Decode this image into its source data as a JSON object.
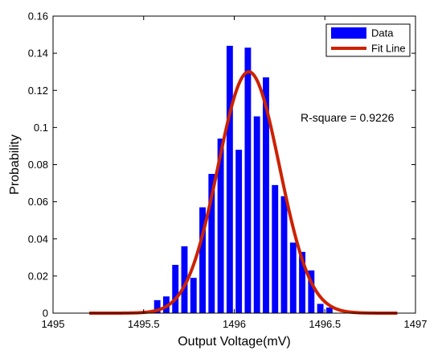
{
  "chart_data": {
    "type": "bar",
    "xlabel": "Output Voltage(mV)",
    "ylabel": "Probability",
    "xlim": [
      1495,
      1497
    ],
    "ylim": [
      0,
      0.16
    ],
    "xticks": [
      1495,
      1495.5,
      1496,
      1496.5,
      1497
    ],
    "yticks": [
      0,
      0.02,
      0.04,
      0.06,
      0.08,
      0.1,
      0.12,
      0.14,
      0.16
    ],
    "xtick_labels": [
      "1495",
      "1495.5",
      "1496",
      "1496.5",
      "1497"
    ],
    "ytick_labels": [
      "0",
      "0.02",
      "0.04",
      "0.06",
      "0.08",
      "0.1",
      "0.12",
      "0.14",
      "0.16"
    ],
    "bar_width": 0.035,
    "series": [
      {
        "name": "Data",
        "type": "bar",
        "color": "#0000ff",
        "x": [
          1495.575,
          1495.625,
          1495.675,
          1495.725,
          1495.775,
          1495.825,
          1495.875,
          1495.925,
          1495.975,
          1496.025,
          1496.075,
          1496.125,
          1496.175,
          1496.225,
          1496.275,
          1496.325,
          1496.375,
          1496.425,
          1496.475,
          1496.525
        ],
        "values": [
          0.007,
          0.009,
          0.026,
          0.036,
          0.019,
          0.057,
          0.075,
          0.094,
          0.144,
          0.088,
          0.143,
          0.106,
          0.127,
          0.069,
          0.063,
          0.038,
          0.033,
          0.023,
          0.005,
          0.003
        ]
      },
      {
        "name": "Fit Line",
        "type": "line",
        "color": "#cc2200",
        "fit": {
          "model": "gaussian",
          "mean": 1496.08,
          "sigma": 0.17,
          "peak": 0.13,
          "x_range": [
            1495.2,
            1496.9
          ]
        }
      }
    ],
    "annotations": [
      {
        "text": "R-square = 0.9226"
      }
    ],
    "legend": {
      "position": "top-right"
    },
    "grid": false
  }
}
